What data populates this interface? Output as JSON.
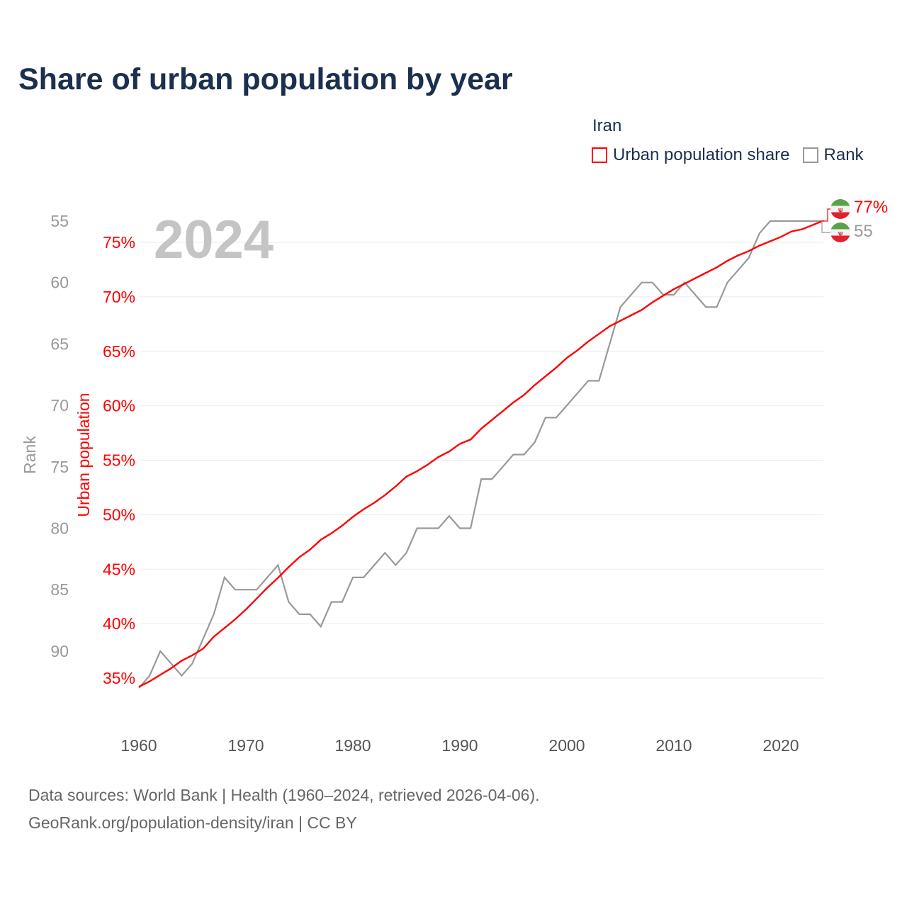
{
  "title": "Share of urban population by year",
  "legend": {
    "title": "Iran",
    "items": [
      {
        "label": "Urban population share",
        "color": "#ff0000"
      },
      {
        "label": "Rank",
        "color": "#999999"
      }
    ]
  },
  "year_watermark": "2024",
  "footer": {
    "line1": "Data sources: World Bank | Health (1960–2024, retrieved 2026-04-06).",
    "line2": "GeoRank.org/population-density/iran | CC BY"
  },
  "end_labels": {
    "urban": "77%",
    "rank": "55"
  },
  "chart_data": {
    "type": "line",
    "title": "Share of urban population by year",
    "xlabel": "",
    "ylabel": "Urban population",
    "y2label": "Rank",
    "xlim": [
      1960,
      2024
    ],
    "ylim": [
      33,
      79
    ],
    "x_ticks": [
      1960,
      1970,
      1980,
      1990,
      2000,
      2010,
      2020
    ],
    "y_ticks": [
      "35%",
      "40%",
      "45%",
      "50%",
      "55%",
      "60%",
      "65%",
      "70%",
      "75%"
    ],
    "y_tick_values": [
      35,
      40,
      45,
      50,
      55,
      60,
      65,
      70,
      75
    ],
    "rank_ticks": [
      "55",
      "60",
      "65",
      "70",
      "75",
      "80",
      "85",
      "90"
    ],
    "rank_tick_values": [
      55,
      60,
      65,
      70,
      75,
      80,
      85,
      90
    ],
    "rank_range": [
      55,
      93
    ],
    "grid": true,
    "legend_position": "top-right",
    "x": [
      1960,
      1961,
      1962,
      1963,
      1964,
      1965,
      1966,
      1967,
      1968,
      1969,
      1970,
      1971,
      1972,
      1973,
      1974,
      1975,
      1976,
      1977,
      1978,
      1979,
      1980,
      1981,
      1982,
      1983,
      1984,
      1985,
      1986,
      1987,
      1988,
      1989,
      1990,
      1991,
      1992,
      1993,
      1994,
      1995,
      1996,
      1997,
      1998,
      1999,
      2000,
      2001,
      2002,
      2003,
      2004,
      2005,
      2006,
      2007,
      2008,
      2009,
      2010,
      2011,
      2012,
      2013,
      2014,
      2015,
      2016,
      2017,
      2018,
      2019,
      2020,
      2021,
      2022,
      2023,
      2024
    ],
    "series": [
      {
        "name": "Urban population share",
        "axis": "left",
        "color": "#ff0000",
        "values": [
          34.2,
          34.7,
          35.3,
          35.9,
          36.6,
          37.1,
          37.7,
          38.8,
          39.6,
          40.4,
          41.3,
          42.3,
          43.3,
          44.2,
          45.2,
          46.1,
          46.8,
          47.7,
          48.3,
          49.0,
          49.8,
          50.5,
          51.1,
          51.8,
          52.6,
          53.5,
          54.0,
          54.6,
          55.3,
          55.8,
          56.5,
          56.9,
          57.9,
          58.7,
          59.5,
          60.3,
          61.0,
          61.9,
          62.7,
          63.5,
          64.4,
          65.1,
          65.9,
          66.6,
          67.3,
          67.8,
          68.3,
          68.8,
          69.5,
          70.1,
          70.7,
          71.2,
          71.7,
          72.2,
          72.7,
          73.3,
          73.8,
          74.2,
          74.7,
          75.1,
          75.5,
          76.0,
          76.2,
          76.6,
          77.0
        ]
      },
      {
        "name": "Rank",
        "axis": "right",
        "color": "#999999",
        "values": [
          93,
          92,
          90,
          91,
          92,
          91,
          89,
          87,
          84,
          85,
          85,
          85,
          84,
          83,
          86,
          87,
          87,
          88,
          86,
          86,
          84,
          84,
          83,
          82,
          83,
          82,
          80,
          80,
          80,
          79,
          80,
          80,
          76,
          76,
          75,
          74,
          74,
          73,
          71,
          71,
          70,
          69,
          68,
          68,
          65,
          62,
          61,
          60,
          60,
          61,
          61,
          60,
          61,
          62,
          62,
          60,
          59,
          58,
          56,
          55,
          55,
          55,
          55,
          55,
          55
        ]
      }
    ]
  }
}
